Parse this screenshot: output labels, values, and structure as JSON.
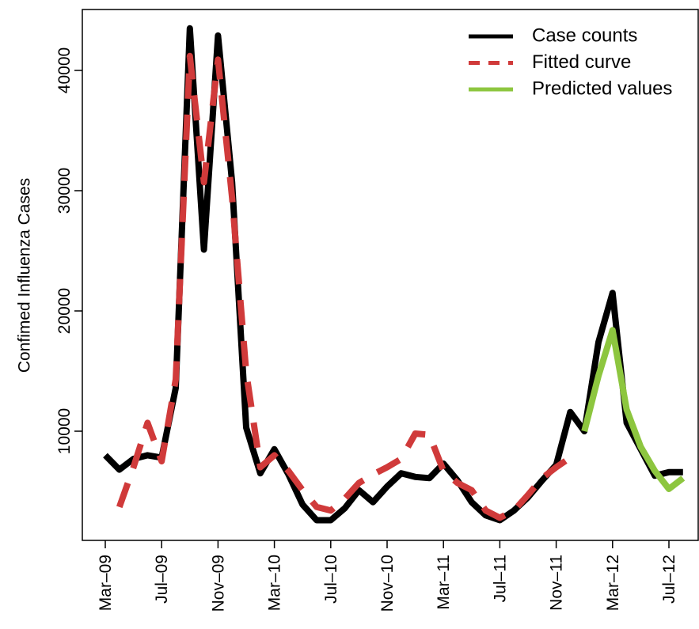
{
  "chart_data": {
    "type": "line",
    "y_label": "Confimed Influenza Cases",
    "categories": [
      "Mar–09",
      null,
      null,
      null,
      "Jul–09",
      null,
      null,
      null,
      "Nov–09",
      null,
      null,
      null,
      "Mar–10",
      null,
      null,
      null,
      "Jul–10",
      null,
      null,
      null,
      "Nov–10",
      null,
      null,
      null,
      "Mar–11",
      null,
      null,
      null,
      "Jul–11",
      null,
      null,
      null,
      "Nov–11",
      null,
      null,
      null,
      "Mar–12",
      null,
      null,
      null,
      "Jul–12",
      null
    ],
    "series": [
      {
        "name": "Case counts",
        "color": "#000000",
        "dash": false,
        "values": [
          8000,
          6800,
          7700,
          8000,
          7800,
          13600,
          43500,
          25100,
          42900,
          30700,
          10300,
          6500,
          8500,
          6400,
          3900,
          2600,
          2600,
          3600,
          5100,
          4100,
          5400,
          6500,
          6200,
          6100,
          7300,
          5900,
          4100,
          3000,
          2600,
          3400,
          4500,
          5900,
          7200,
          11600,
          10000,
          17400,
          21500,
          10700,
          8500,
          6300,
          6600,
          6600
        ]
      },
      {
        "name": "Fitted curve",
        "color": "#d03a3a",
        "dash": true,
        "values": [
          null,
          3700,
          7000,
          10700,
          7500,
          14300,
          41200,
          30700,
          40900,
          29400,
          14900,
          7000,
          8000,
          6700,
          5100,
          3700,
          3400,
          4400,
          5700,
          6400,
          7000,
          7700,
          9800,
          9700,
          6700,
          5700,
          5100,
          3400,
          2800,
          3400,
          4700,
          6100,
          7000,
          7800,
          null,
          null,
          null,
          null,
          null,
          null,
          null,
          null
        ]
      },
      {
        "name": "Predicted values",
        "color": "#8dc63f",
        "dash": false,
        "values": [
          null,
          null,
          null,
          null,
          null,
          null,
          null,
          null,
          null,
          null,
          null,
          null,
          null,
          null,
          null,
          null,
          null,
          null,
          null,
          null,
          null,
          null,
          null,
          null,
          null,
          null,
          null,
          null,
          null,
          null,
          null,
          null,
          null,
          null,
          10000,
          14600,
          18400,
          11800,
          8700,
          6700,
          5200,
          6100
        ]
      }
    ],
    "ylim": [
      921,
      45066
    ],
    "yticks": [
      10000,
      20000,
      30000,
      40000
    ],
    "legend": "top-right"
  }
}
